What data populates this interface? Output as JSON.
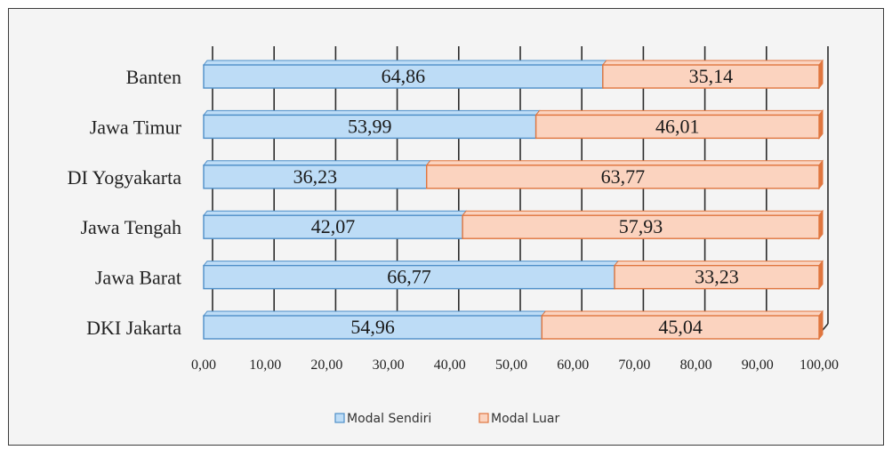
{
  "chart_data": {
    "type": "bar",
    "orientation": "horizontal",
    "stacked": true,
    "style": "3d",
    "categories": [
      "Banten",
      "Jawa Timur",
      "DI Yogyakarta",
      "Jawa Tengah",
      "Jawa Barat",
      "DKI Jakarta"
    ],
    "series": [
      {
        "name": "Modal Sendiri",
        "color": "#bddcf6",
        "edge": "#4f8fc8",
        "values": [
          64.86,
          53.99,
          36.23,
          42.07,
          66.77,
          54.96
        ],
        "labels": [
          "64,86",
          "53,99",
          "36,23",
          "42,07",
          "66,77",
          "54,96"
        ]
      },
      {
        "name": "Modal Luar",
        "color": "#fbd3bf",
        "edge": "#e0763f",
        "values": [
          35.14,
          46.01,
          63.77,
          57.93,
          33.23,
          45.04
        ],
        "labels": [
          "35,14",
          "46,01",
          "63,77",
          "57,93",
          "33,23",
          "45,04"
        ]
      }
    ],
    "xlim": [
      0,
      100
    ],
    "xticks": [
      0,
      10,
      20,
      30,
      40,
      50,
      60,
      70,
      80,
      90,
      100
    ],
    "xtick_labels": [
      "0,00",
      "10,00",
      "20,00",
      "30,00",
      "40,00",
      "50,00",
      "60,00",
      "70,00",
      "80,00",
      "90,00",
      "100,00"
    ],
    "grid": true,
    "legend_position": "bottom"
  }
}
